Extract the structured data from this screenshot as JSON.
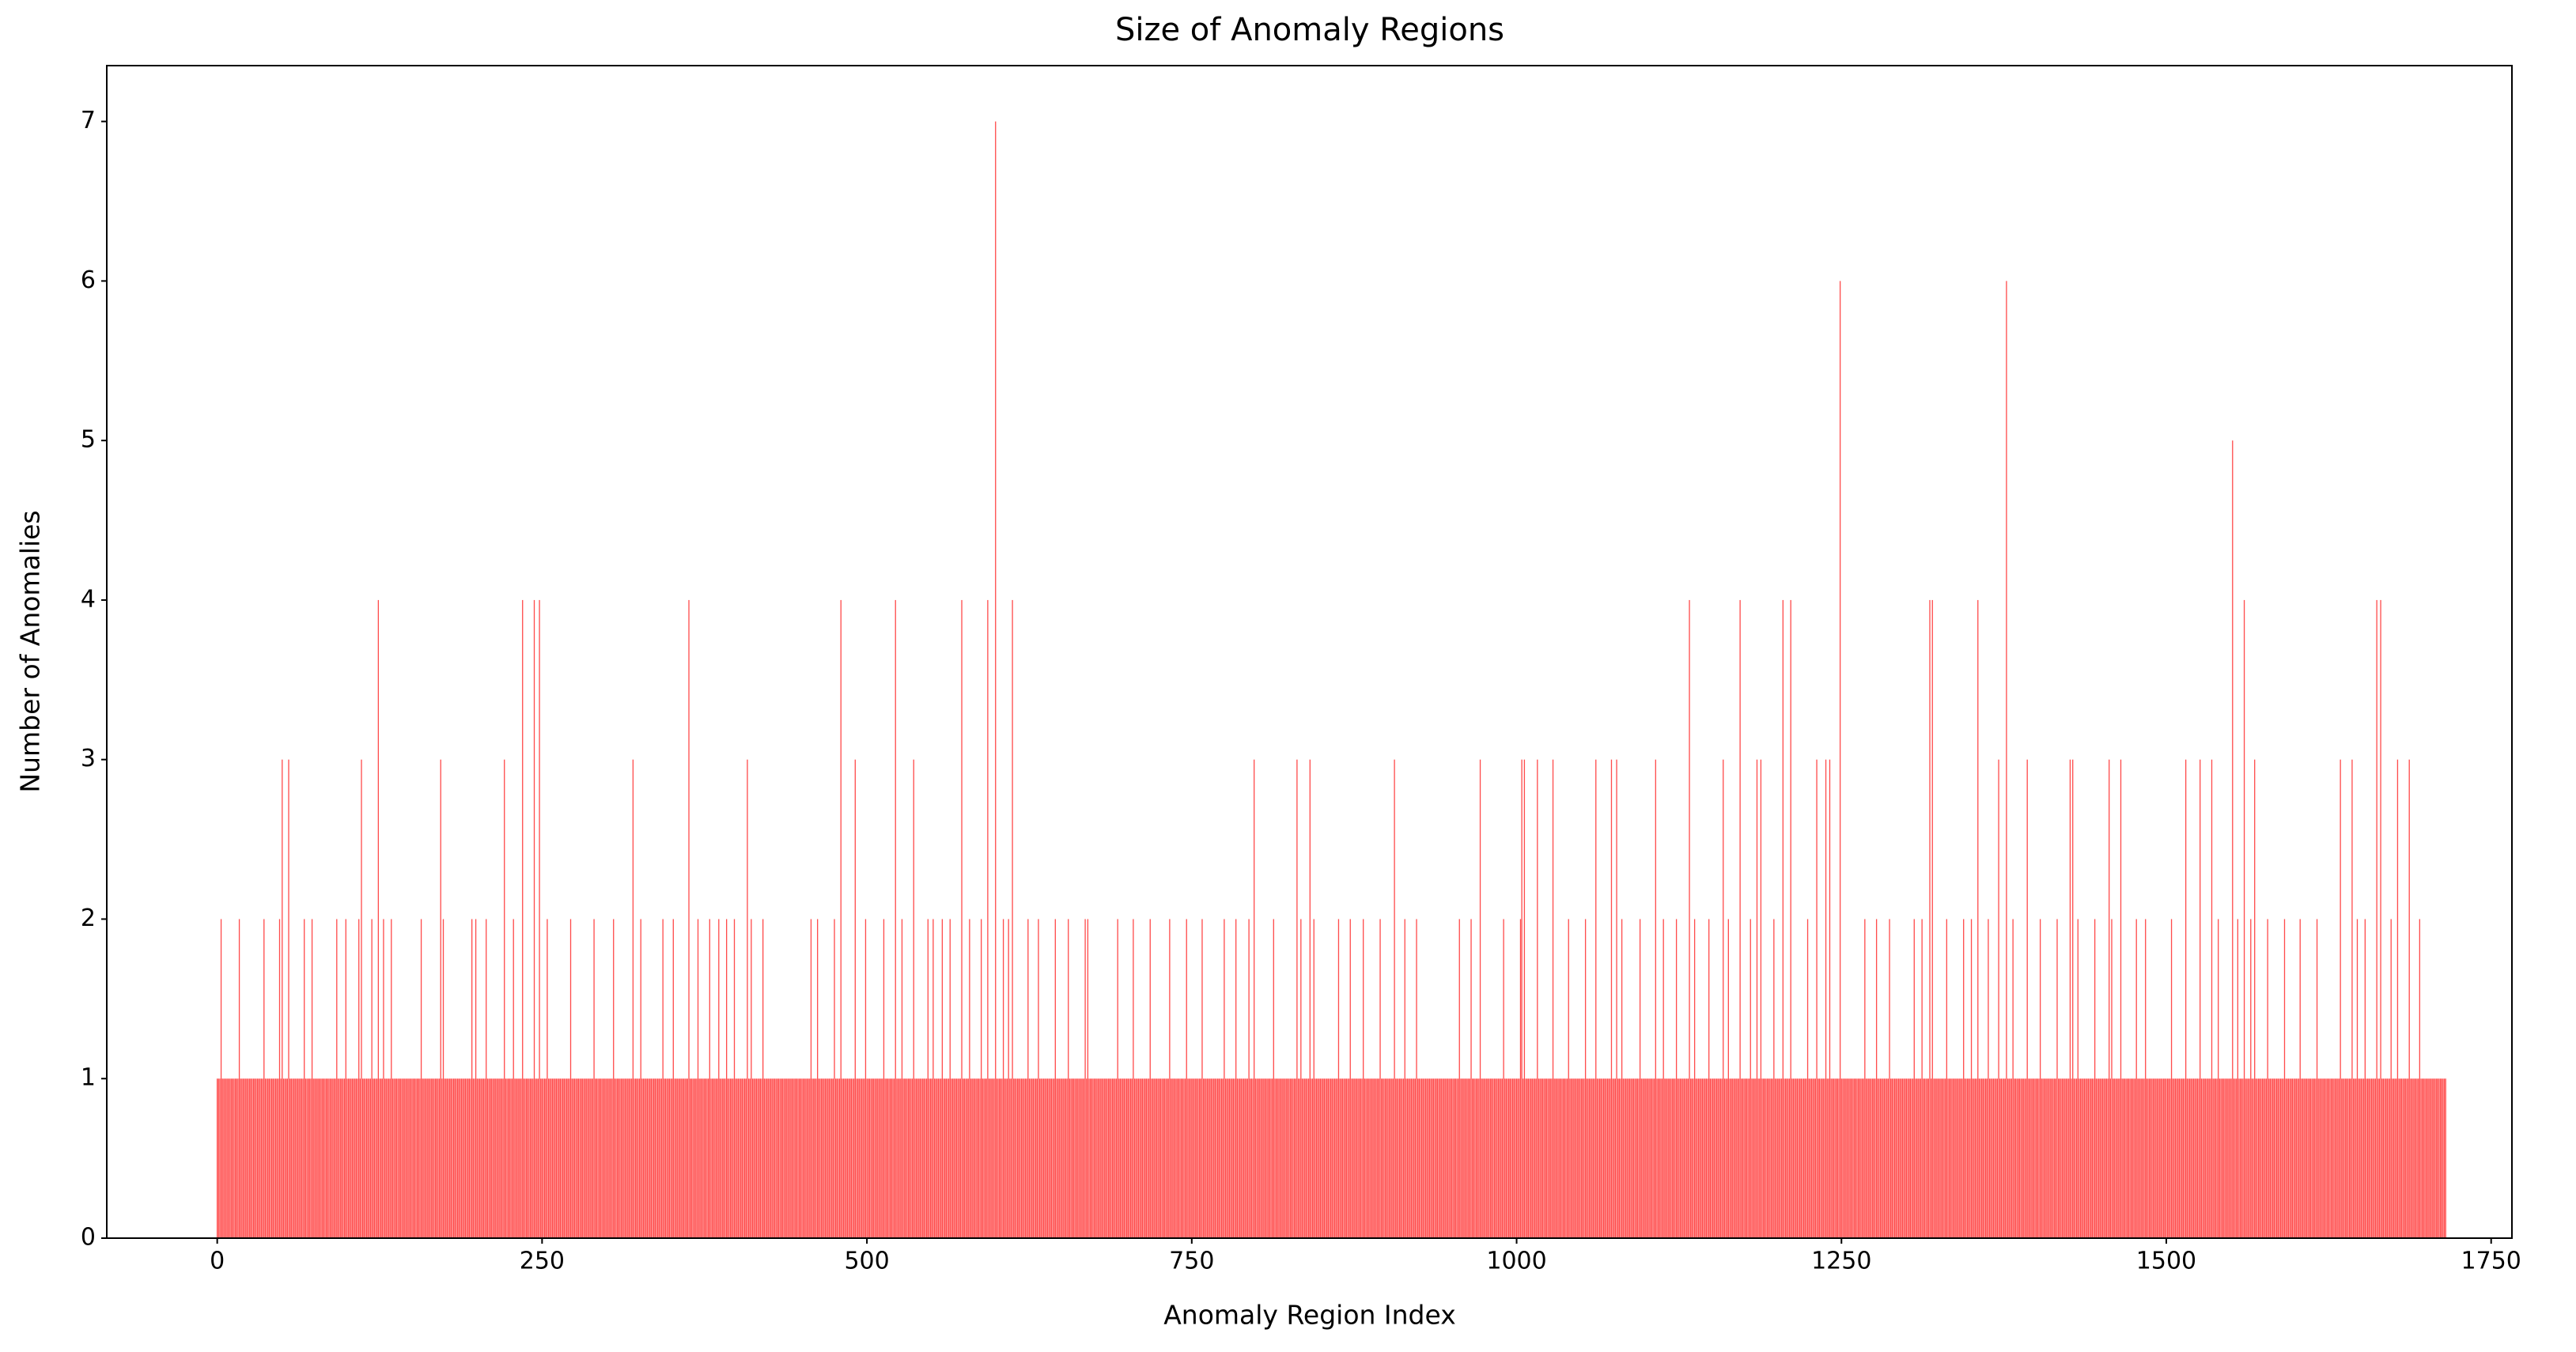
{
  "chart_data": {
    "type": "bar",
    "title": "Size of Anomaly Regions",
    "xlabel": "Anomaly Region Index",
    "ylabel": "Number of Anomalies",
    "color": "#ff4c4c",
    "xlim": [
      -85,
      1766
    ],
    "xticks": [
      0,
      250,
      500,
      750,
      1000,
      1250,
      1500,
      1750
    ],
    "ylim": [
      0,
      7.35
    ],
    "yticks": [
      0,
      1,
      2,
      3,
      4,
      5,
      6,
      7
    ],
    "grid": false,
    "values": [
      1,
      1,
      1,
      2,
      1,
      1,
      1,
      1,
      1,
      1,
      1,
      1,
      1,
      1,
      1,
      1,
      1,
      2,
      1,
      1,
      1,
      1,
      1,
      1,
      1,
      1,
      1,
      1,
      1,
      1,
      1,
      1,
      1,
      1,
      1,
      1,
      2,
      1,
      1,
      1,
      1,
      1,
      1,
      1,
      1,
      1,
      1,
      1,
      2,
      1,
      3,
      1,
      1,
      1,
      1,
      3,
      1,
      1,
      1,
      1,
      1,
      1,
      1,
      1,
      1,
      1,
      1,
      2,
      1,
      1,
      1,
      1,
      1,
      2,
      1,
      1,
      1,
      1,
      1,
      1,
      1,
      1,
      1,
      1,
      1,
      1,
      1,
      1,
      1,
      1,
      1,
      1,
      2,
      1,
      1,
      1,
      1,
      1,
      1,
      2,
      1,
      1,
      1,
      1,
      1,
      1,
      1,
      1,
      1,
      2,
      1,
      3,
      1,
      1,
      1,
      1,
      1,
      1,
      1,
      2,
      1,
      1,
      1,
      1,
      4,
      1,
      1,
      1,
      2,
      1,
      1,
      1,
      1,
      1,
      2,
      1,
      1,
      1,
      1,
      1,
      1,
      1,
      1,
      1,
      1,
      1,
      1,
      1,
      1,
      1,
      1,
      1,
      1,
      1,
      1,
      1,
      1,
      2,
      1,
      1,
      1,
      1,
      1,
      1,
      1,
      1,
      1,
      1,
      1,
      1,
      1,
      1,
      3,
      1,
      2,
      1,
      1,
      1,
      1,
      1,
      1,
      1,
      1,
      1,
      1,
      1,
      1,
      1,
      1,
      1,
      1,
      1,
      1,
      1,
      1,
      1,
      2,
      1,
      1,
      2,
      1,
      1,
      1,
      1,
      1,
      1,
      1,
      2,
      1,
      1,
      1,
      1,
      1,
      1,
      1,
      1,
      1,
      1,
      1,
      1,
      1,
      3,
      1,
      1,
      1,
      1,
      1,
      1,
      2,
      1,
      1,
      1,
      1,
      1,
      1,
      4,
      1,
      1,
      1,
      1,
      1,
      1,
      1,
      1,
      4,
      1,
      1,
      1,
      4,
      1,
      1,
      1,
      1,
      1,
      2,
      1,
      1,
      1,
      1,
      1,
      1,
      1,
      1,
      1,
      1,
      1,
      1,
      1,
      1,
      1,
      1,
      1,
      2,
      1,
      1,
      1,
      1,
      1,
      1,
      1,
      1,
      1,
      1,
      1,
      1,
      1,
      1,
      1,
      1,
      1,
      2,
      1,
      1,
      1,
      1,
      1,
      1,
      1,
      1,
      1,
      1,
      1,
      1,
      1,
      1,
      2,
      1,
      1,
      1,
      1,
      1,
      1,
      1,
      1,
      1,
      1,
      1,
      1,
      1,
      1,
      3,
      1,
      1,
      1,
      1,
      1,
      2,
      1,
      1,
      1,
      1,
      1,
      1,
      1,
      1,
      1,
      1,
      1,
      1,
      1,
      1,
      1,
      1,
      2,
      1,
      1,
      1,
      1,
      1,
      1,
      1,
      2,
      1,
      1,
      1,
      1,
      1,
      1,
      1,
      1,
      1,
      1,
      1,
      4,
      1,
      1,
      1,
      1,
      1,
      1,
      2,
      1,
      1,
      1,
      1,
      1,
      1,
      1,
      1,
      2,
      1,
      1,
      1,
      1,
      1,
      1,
      2,
      1,
      1,
      1,
      1,
      1,
      2,
      1,
      1,
      1,
      1,
      1,
      2,
      1,
      1,
      1,
      1,
      1,
      1,
      1,
      1,
      1,
      3,
      1,
      1,
      2,
      1,
      1,
      1,
      1,
      1,
      1,
      1,
      1,
      2,
      1,
      1,
      1,
      1,
      1,
      1,
      1,
      1,
      1,
      1,
      1,
      1,
      1,
      1,
      1,
      1,
      1,
      1,
      1,
      1,
      1,
      1,
      1,
      1,
      1,
      1,
      1,
      1,
      1,
      1,
      1,
      1,
      1,
      1,
      1,
      1,
      2,
      1,
      1,
      1,
      1,
      2,
      1,
      1,
      1,
      1,
      1,
      1,
      1,
      1,
      1,
      1,
      1,
      1,
      2,
      1,
      1,
      1,
      1,
      4,
      1,
      1,
      1,
      1,
      1,
      1,
      1,
      1,
      1,
      1,
      3,
      1,
      1,
      1,
      1,
      1,
      1,
      1,
      2,
      1,
      1,
      1,
      1,
      1,
      1,
      1,
      1,
      1,
      1,
      1,
      1,
      1,
      2,
      1,
      1,
      1,
      1,
      1,
      1,
      1,
      1,
      4,
      1,
      1,
      1,
      1,
      2,
      1,
      1,
      1,
      1,
      1,
      1,
      1,
      1,
      3,
      1,
      1,
      1,
      1,
      1,
      1,
      1,
      1,
      1,
      1,
      2,
      1,
      1,
      1,
      2,
      1,
      1,
      1,
      1,
      1,
      1,
      2,
      1,
      1,
      1,
      1,
      1,
      2,
      1,
      1,
      1,
      1,
      1,
      1,
      1,
      1,
      4,
      1,
      1,
      1,
      1,
      1,
      2,
      1,
      1,
      1,
      1,
      1,
      1,
      1,
      1,
      2,
      1,
      1,
      1,
      1,
      4,
      1,
      1,
      1,
      1,
      1,
      7,
      1,
      1,
      1,
      1,
      1,
      2,
      1,
      1,
      1,
      2,
      1,
      1,
      4,
      1,
      1,
      1,
      1,
      1,
      1,
      1,
      1,
      1,
      1,
      1,
      2,
      1,
      1,
      1,
      1,
      1,
      1,
      1,
      2,
      1,
      1,
      1,
      1,
      1,
      1,
      1,
      1,
      1,
      1,
      1,
      1,
      2,
      1,
      1,
      1,
      1,
      1,
      1,
      1,
      1,
      1,
      2,
      1,
      1,
      1,
      1,
      1,
      1,
      1,
      1,
      1,
      1,
      1,
      1,
      2,
      1,
      2,
      1,
      1,
      1,
      1,
      1,
      1,
      1,
      1,
      1,
      1,
      1,
      1,
      1,
      1,
      1,
      1,
      1,
      1,
      1,
      1,
      1,
      1,
      2,
      1,
      1,
      1,
      1,
      1,
      1,
      1,
      1,
      1,
      1,
      1,
      2,
      1,
      1,
      1,
      1,
      1,
      1,
      1,
      1,
      1,
      1,
      1,
      1,
      2,
      1,
      1,
      1,
      1,
      1,
      1,
      1,
      1,
      1,
      1,
      1,
      1,
      1,
      1,
      2,
      1,
      1,
      1,
      1,
      1,
      1,
      1,
      1,
      1,
      1,
      1,
      1,
      2,
      1,
      1,
      1,
      1,
      1,
      1,
      1,
      1,
      1,
      1,
      1,
      2,
      1,
      1,
      1,
      1,
      1,
      1,
      1,
      1,
      1,
      1,
      1,
      1,
      1,
      1,
      1,
      1,
      2,
      1,
      1,
      1,
      1,
      1,
      1,
      1,
      1,
      2,
      1,
      1,
      1,
      1,
      1,
      1,
      1,
      1,
      1,
      2,
      1,
      1,
      1,
      3,
      1,
      1,
      1,
      1,
      1,
      1,
      1,
      1,
      1,
      1,
      1,
      1,
      1,
      1,
      2,
      1,
      1,
      1,
      1,
      1,
      1,
      1,
      1,
      1,
      1,
      1,
      1,
      1,
      1,
      1,
      1,
      1,
      3,
      1,
      1,
      2,
      1,
      1,
      1,
      1,
      1,
      1,
      3,
      1,
      1,
      2,
      1,
      1,
      1,
      1,
      1,
      1,
      1,
      1,
      1,
      1,
      1,
      1,
      1,
      1,
      1,
      1,
      1,
      1,
      2,
      1,
      1,
      1,
      1,
      1,
      1,
      1,
      1,
      2,
      1,
      1,
      1,
      1,
      1,
      1,
      1,
      1,
      1,
      2,
      1,
      1,
      1,
      1,
      1,
      1,
      1,
      1,
      1,
      1,
      1,
      1,
      2,
      1,
      1,
      1,
      1,
      1,
      1,
      1,
      1,
      1,
      1,
      3,
      1,
      1,
      1,
      1,
      1,
      1,
      1,
      2,
      1,
      1,
      1,
      1,
      1,
      1,
      1,
      1,
      2,
      1,
      1,
      1,
      1,
      1,
      1,
      1,
      1,
      1,
      1,
      1,
      1,
      1,
      1,
      1,
      1,
      1,
      1,
      1,
      1,
      1,
      1,
      1,
      1,
      1,
      1,
      1,
      1,
      1,
      1,
      1,
      1,
      2,
      1,
      1,
      1,
      1,
      1,
      1,
      1,
      1,
      2,
      1,
      1,
      1,
      1,
      1,
      1,
      3,
      1,
      1,
      1,
      1,
      1,
      1,
      1,
      1,
      1,
      1,
      1,
      1,
      1,
      1,
      1,
      1,
      1,
      2,
      1,
      1,
      1,
      1,
      1,
      1,
      1,
      1,
      1,
      1,
      1,
      1,
      2,
      3,
      1,
      3,
      1,
      1,
      1,
      1,
      1,
      1,
      1,
      1,
      1,
      3,
      1,
      1,
      1,
      1,
      1,
      1,
      1,
      1,
      1,
      1,
      1,
      3,
      1,
      1,
      1,
      1,
      1,
      1,
      1,
      1,
      1,
      1,
      1,
      2,
      1,
      1,
      1,
      1,
      1,
      1,
      1,
      1,
      1,
      1,
      1,
      1,
      2,
      1,
      1,
      1,
      1,
      1,
      1,
      1,
      3,
      1,
      1,
      1,
      1,
      1,
      1,
      1,
      1,
      1,
      1,
      1,
      3,
      1,
      1,
      1,
      3,
      1,
      1,
      1,
      2,
      1,
      1,
      1,
      1,
      1,
      1,
      1,
      1,
      1,
      1,
      1,
      1,
      1,
      2,
      1,
      1,
      1,
      1,
      1,
      1,
      1,
      1,
      1,
      1,
      1,
      3,
      1,
      1,
      1,
      1,
      1,
      2,
      1,
      1,
      1,
      1,
      1,
      1,
      1,
      1,
      1,
      2,
      1,
      1,
      1,
      1,
      1,
      1,
      1,
      1,
      1,
      4,
      1,
      1,
      1,
      2,
      1,
      1,
      1,
      1,
      1,
      1,
      1,
      1,
      1,
      1,
      2,
      1,
      1,
      1,
      1,
      1,
      1,
      1,
      1,
      1,
      1,
      3,
      1,
      1,
      1,
      2,
      1,
      1,
      1,
      1,
      1,
      1,
      1,
      1,
      4,
      1,
      1,
      1,
      1,
      1,
      1,
      1,
      2,
      1,
      1,
      1,
      1,
      3,
      1,
      1,
      3,
      1,
      1,
      1,
      1,
      1,
      1,
      1,
      1,
      1,
      2,
      1,
      1,
      1,
      1,
      1,
      1,
      4,
      1,
      1,
      1,
      1,
      1,
      4,
      1,
      1,
      1,
      1,
      1,
      1,
      1,
      1,
      1,
      1,
      1,
      1,
      2,
      1,
      1,
      1,
      1,
      1,
      1,
      3,
      1,
      1,
      1,
      1,
      1,
      1,
      3,
      1,
      1,
      3,
      1,
      1,
      1,
      1,
      1,
      1,
      1,
      6,
      1,
      1,
      1,
      1,
      1,
      1,
      1,
      1,
      1,
      1,
      1,
      1,
      1,
      1,
      1,
      1,
      1,
      1,
      2,
      1,
      1,
      1,
      1,
      1,
      1,
      1,
      1,
      2,
      1,
      1,
      1,
      1,
      1,
      1,
      1,
      1,
      1,
      2,
      1,
      1,
      1,
      1,
      1,
      1,
      1,
      1,
      1,
      1,
      1,
      1,
      1,
      1,
      1,
      1,
      1,
      1,
      2,
      1,
      1,
      1,
      1,
      1,
      2,
      1,
      1,
      1,
      1,
      1,
      4,
      1,
      4,
      1,
      1,
      1,
      1,
      1,
      1,
      1,
      1,
      1,
      1,
      2,
      1,
      1,
      1,
      1,
      1,
      1,
      1,
      1,
      1,
      1,
      1,
      1,
      2,
      1,
      1,
      1,
      1,
      1,
      2,
      1,
      1,
      1,
      1,
      4,
      1,
      1,
      1,
      1,
      1,
      1,
      1,
      2,
      1,
      1,
      1,
      1,
      1,
      1,
      1,
      3,
      1,
      1,
      1,
      1,
      1,
      6,
      1,
      1,
      1,
      1,
      2,
      1,
      1,
      1,
      1,
      1,
      1,
      1,
      1,
      1,
      1,
      3,
      1,
      1,
      1,
      1,
      1,
      1,
      1,
      1,
      1,
      2,
      1,
      1,
      1,
      1,
      1,
      1,
      1,
      1,
      1,
      1,
      1,
      1,
      2,
      1,
      1,
      1,
      1,
      1,
      1,
      1,
      1,
      1,
      3,
      1,
      3,
      1,
      1,
      1,
      2,
      1,
      1,
      1,
      1,
      1,
      1,
      1,
      1,
      1,
      1,
      1,
      1,
      2,
      1,
      1,
      1,
      1,
      1,
      1,
      1,
      1,
      1,
      1,
      3,
      1,
      2,
      1,
      1,
      1,
      1,
      1,
      1,
      3,
      1,
      1,
      1,
      1,
      1,
      1,
      1,
      1,
      1,
      1,
      1,
      2,
      1,
      1,
      1,
      1,
      1,
      1,
      2,
      1,
      1,
      1,
      1,
      1,
      1,
      1,
      1,
      1,
      1,
      1,
      1,
      1,
      1,
      1,
      1,
      1,
      1,
      1,
      2,
      1,
      1,
      1,
      1,
      1,
      1,
      1,
      1,
      1,
      1,
      3,
      1,
      1,
      1,
      1,
      1,
      1,
      1,
      1,
      1,
      1,
      3,
      1,
      1,
      1,
      1,
      1,
      1,
      1,
      1,
      3,
      1,
      1,
      1,
      1,
      2,
      1,
      1,
      1,
      1,
      1,
      1,
      1,
      1,
      1,
      1,
      5,
      1,
      1,
      1,
      2,
      1,
      1,
      1,
      1,
      4,
      1,
      1,
      1,
      1,
      2,
      1,
      1,
      3,
      1,
      1,
      1,
      1,
      1,
      1,
      1,
      1,
      1,
      2,
      1,
      1,
      1,
      1,
      1,
      1,
      1,
      1,
      1,
      1,
      1,
      1,
      2,
      1,
      1,
      1,
      1,
      1,
      1,
      1,
      1,
      1,
      1,
      1,
      2,
      1,
      1,
      1,
      1,
      1,
      1,
      1,
      1,
      1,
      1,
      1,
      1,
      2,
      1,
      1,
      1,
      1,
      1,
      1,
      1,
      1,
      1,
      1,
      1,
      1,
      1,
      1,
      1,
      1,
      1,
      3,
      1,
      1,
      1,
      1,
      1,
      1,
      1,
      1,
      3,
      1,
      1,
      1,
      2,
      1,
      1,
      1,
      1,
      1,
      2,
      1,
      1,
      1,
      1,
      1,
      1,
      1,
      1,
      4,
      1,
      1,
      4,
      1,
      1,
      1,
      1,
      1,
      1,
      1,
      2,
      1,
      1,
      1,
      1,
      3,
      1,
      1,
      1,
      1,
      1,
      1,
      1,
      1,
      3,
      1,
      1,
      1,
      1,
      1,
      1,
      1,
      2,
      1,
      1,
      1,
      1,
      1,
      1,
      1,
      1,
      1,
      1,
      1,
      1,
      1,
      1,
      1,
      1,
      1,
      1,
      1,
      1
    ]
  }
}
